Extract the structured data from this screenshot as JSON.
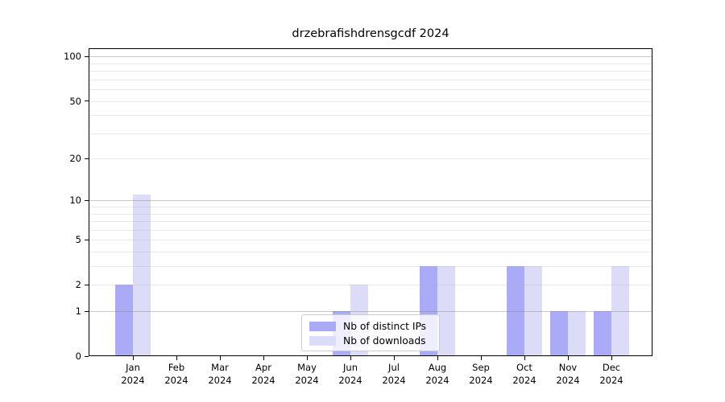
{
  "figure": {
    "background": "#ffffff"
  },
  "chart_data": {
    "type": "bar",
    "title": "drzebrafishdrensgcdf 2024",
    "categories": [
      "Jan",
      "Feb",
      "Mar",
      "Apr",
      "May",
      "Jun",
      "Jul",
      "Aug",
      "Sep",
      "Oct",
      "Nov",
      "Dec"
    ],
    "year": "2024",
    "series": [
      {
        "name": "Nb of distinct IPs",
        "color": "#aaaaf7",
        "values": [
          2,
          0,
          0,
          0,
          0,
          1,
          0,
          3,
          0,
          3,
          1,
          1
        ]
      },
      {
        "name": "Nb of downloads",
        "color": "#dcdcf8",
        "values": [
          11,
          0,
          0,
          0,
          0,
          2,
          0,
          3,
          0,
          3,
          1,
          3
        ]
      }
    ],
    "xlabel": "",
    "ylabel": "",
    "y_axis": {
      "scale": "log10(value+1)",
      "tick_labels": [
        0,
        1,
        2,
        5,
        10,
        20,
        50,
        100
      ],
      "major_gridlines": [
        1,
        10,
        100
      ],
      "minor_gridlines": [
        2,
        3,
        4,
        5,
        6,
        7,
        8,
        9,
        20,
        30,
        40,
        50,
        60,
        70,
        80,
        90
      ],
      "ylim": [
        0,
        114
      ]
    },
    "grid": true,
    "legend": {
      "position": "lower center",
      "entries": [
        "Nb of distinct IPs",
        "Nb of downloads"
      ]
    }
  },
  "colors": {
    "axis": "#000000",
    "major_grid": "rgba(130,130,130,0.45)",
    "minor_grid": "rgba(180,180,180,0.30)",
    "legend_border": "#cccccc"
  }
}
